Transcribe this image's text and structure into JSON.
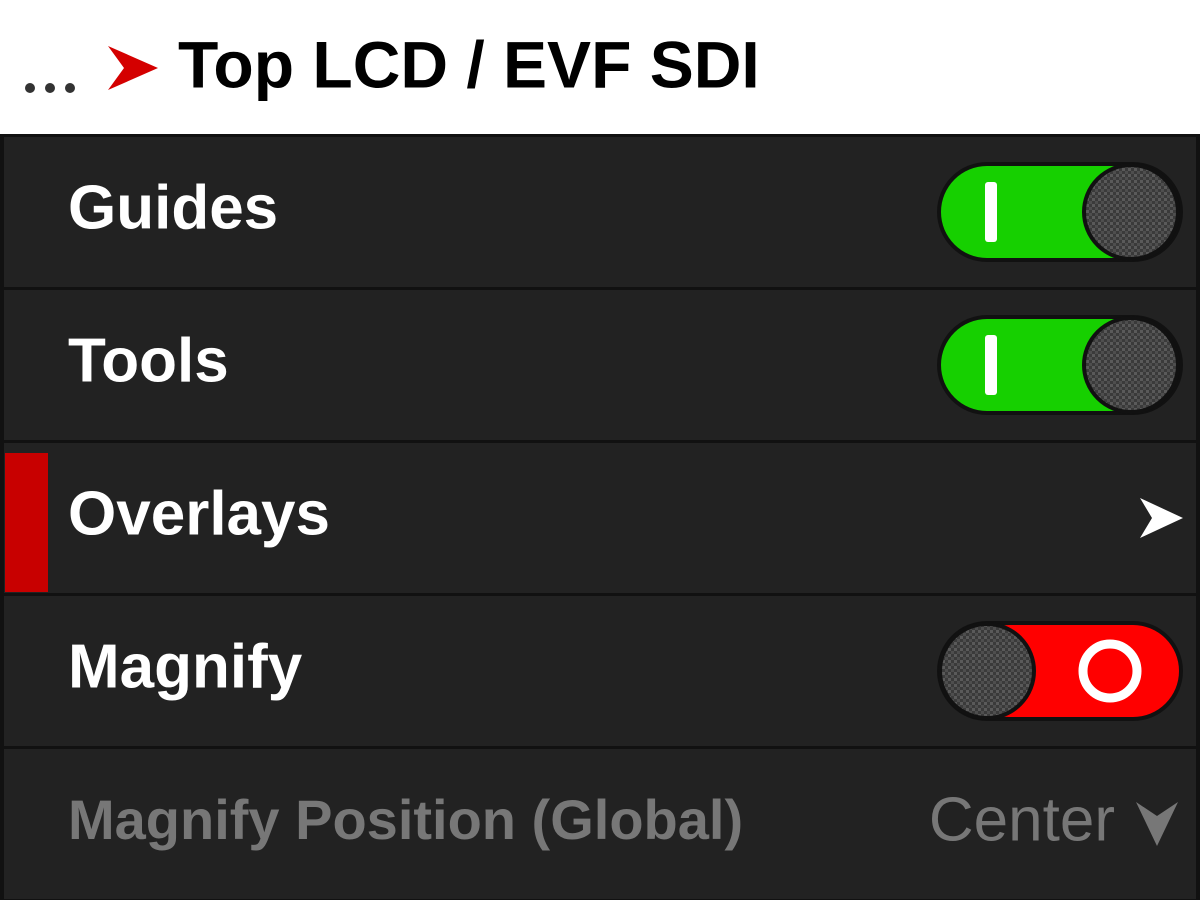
{
  "header": {
    "title": "Top LCD / EVF SDI"
  },
  "menu": {
    "rows": [
      {
        "label": "Guides",
        "control": "toggle",
        "on": true
      },
      {
        "label": "Tools",
        "control": "toggle",
        "on": true
      },
      {
        "label": "Overlays",
        "control": "submenu",
        "selected": true
      },
      {
        "label": "Magnify",
        "control": "toggle",
        "on": false
      },
      {
        "label": "Magnify Position (Global)",
        "control": "dropdown",
        "value": "Center",
        "disabled": true
      }
    ]
  }
}
